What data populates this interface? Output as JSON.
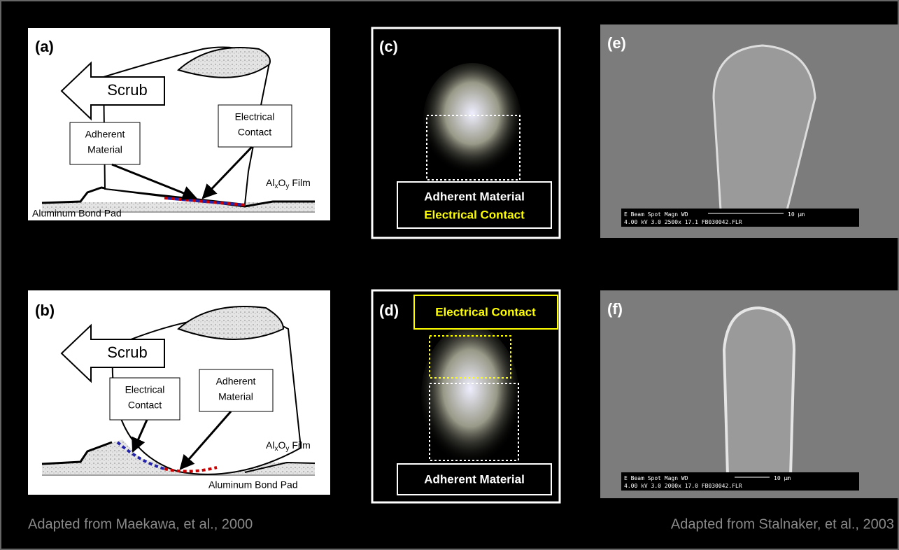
{
  "panels": [
    {
      "label": "(a)",
      "arrow": "Scrub",
      "callouts": [
        [
          "Adherent",
          "Material"
        ],
        [
          "Electrical",
          "Contact"
        ]
      ],
      "film": {
        "base": "Al",
        "sub1": "x",
        "mid": "O",
        "sub2": "y",
        "tail": "Film"
      },
      "pad": "Aluminum Bond Pad"
    },
    {
      "label": "(b)",
      "arrow": "Scrub",
      "callouts": [
        [
          "Electrical",
          "Contact"
        ],
        [
          "Adherent",
          "Material"
        ]
      ],
      "film": {
        "base": "Al",
        "sub1": "x",
        "mid": "O",
        "sub2": "y",
        "tail": "Film"
      },
      "pad": "Aluminum Bond Pad"
    },
    {
      "label": "(c)",
      "boxes": [
        "Adherent Material",
        "Electrical Contact"
      ]
    },
    {
      "label": "(d)",
      "boxes": [
        "Electrical Contact",
        "Adherent Material"
      ]
    },
    {
      "label": "(e)",
      "sem": {
        "header": "E Beam  Spot  Magn    WD",
        "values": "4.00 kV  3.0   2500x   17.1  FB030042.FLR",
        "scale": "10 µm"
      }
    },
    {
      "label": "(f)",
      "sem": {
        "header": "E Beam  Spot  Magn    WD",
        "values": "4.00 kV  3.0   2000x   17.0  FB030042.FLR",
        "scale": "10 µm"
      }
    }
  ],
  "captions": {
    "left": "Adapted from Maekawa, et al., 2000",
    "right": "Adapted from Stalnaker, et al., 2003"
  }
}
